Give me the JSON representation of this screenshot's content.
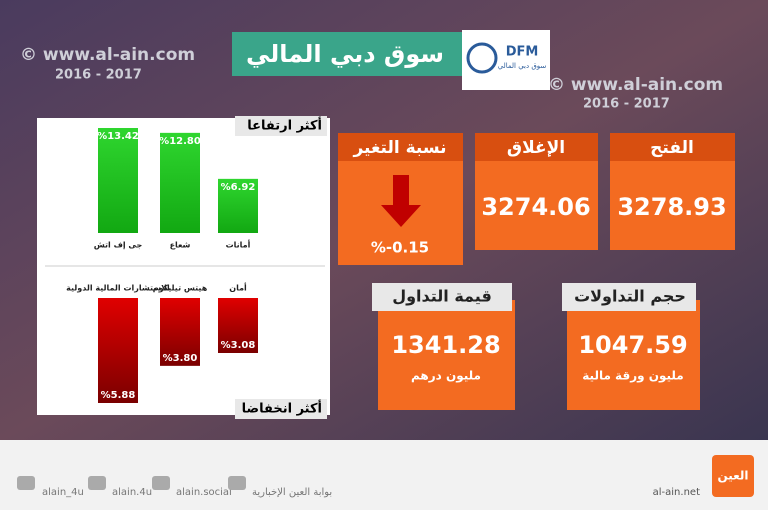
{
  "header": {
    "title": "سوق دبي المالي",
    "logo": "DFM",
    "logo_sub": "سوق دبي المالي"
  },
  "watermark": {
    "site": "© www.al-ain.com",
    "years": "2016 - 2017"
  },
  "gainers": {
    "title": "أكثر ارتفاعا",
    "names": [
      "جى إف اتش",
      "شعاع",
      "أمانات"
    ],
    "values": [
      13.42,
      12.8,
      6.92
    ],
    "value_labels": [
      "%13.42",
      "%12.80",
      "%6.92"
    ]
  },
  "losers": {
    "title": "أكثر انخفاضا",
    "names": [
      "الاستشارات المالية الدولية",
      "هيتس تيليكوم",
      "أمان"
    ],
    "values": [
      5.88,
      3.8,
      3.08
    ],
    "value_labels": [
      "%5.88",
      "%3.80",
      "%3.08"
    ]
  },
  "stats": {
    "open": {
      "label": "الفتح",
      "value": "3278.93"
    },
    "close": {
      "label": "الإغلاق",
      "value": "3274.06"
    },
    "change": {
      "label": "نسبة التغير",
      "value": "%-0.15"
    },
    "trade_value": {
      "label": "قيمة التداول",
      "value": "1341.28",
      "unit": "مليون درهم"
    },
    "trade_volume": {
      "label": "حجم التداولات",
      "value": "1047.59",
      "unit": "مليون ورقة مالية"
    }
  },
  "footer": {
    "socials": [
      "alain_4u",
      "alain.4u",
      "alain.social",
      "بوابة العين الإخبارية"
    ],
    "site": "al-ain.net",
    "logo": "العين"
  }
}
